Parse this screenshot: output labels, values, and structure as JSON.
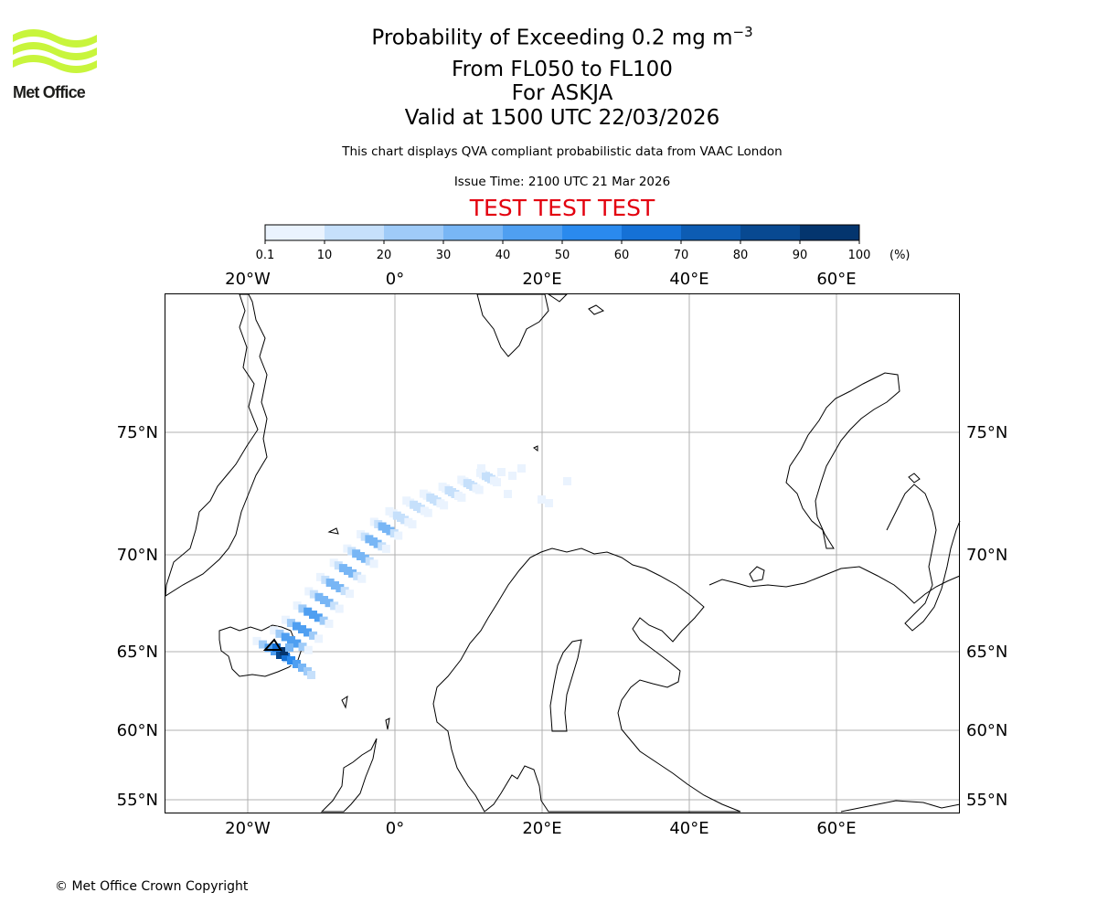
{
  "header": {
    "title_prefix": "Probability of Exceeding 0.2 mg m",
    "title_exponent": "−3",
    "levels": "From FL050 to FL100",
    "volcano": "For ASKJA",
    "valid": "Valid at 1500 UTC 22/03/2026",
    "description": "This chart displays QVA compliant probabilistic data from VAAC London",
    "issue_time": "Issue Time: 2100 UTC 21 Mar 2026",
    "test_banner": "TEST TEST TEST"
  },
  "logo": {
    "text": "Met Office",
    "color": "#c8f53c"
  },
  "colorbar": {
    "tick_labels": [
      "0.1",
      "10",
      "20",
      "30",
      "40",
      "50",
      "60",
      "70",
      "80",
      "90",
      "100"
    ],
    "unit": "(%)",
    "colors": [
      "#eaf3fe",
      "#c6e0fb",
      "#9fcbf8",
      "#78b6f5",
      "#4f9ff1",
      "#2a8aee",
      "#1571d6",
      "#0d5cb3",
      "#084991",
      "#04356e",
      "#01234f"
    ]
  },
  "map": {
    "lon_labels": [
      "20°W",
      "0°",
      "20°E",
      "40°E",
      "60°E"
    ],
    "lat_labels": [
      "75°N",
      "70°N",
      "65°N",
      "60°N",
      "55°N"
    ],
    "lon_values": [
      -20,
      0,
      20,
      40,
      60
    ],
    "lat_values": [
      75,
      70,
      65,
      60,
      55
    ],
    "source_marker": "Askja"
  },
  "footer": {
    "copyright": "© Met Office Crown Copyright"
  }
}
